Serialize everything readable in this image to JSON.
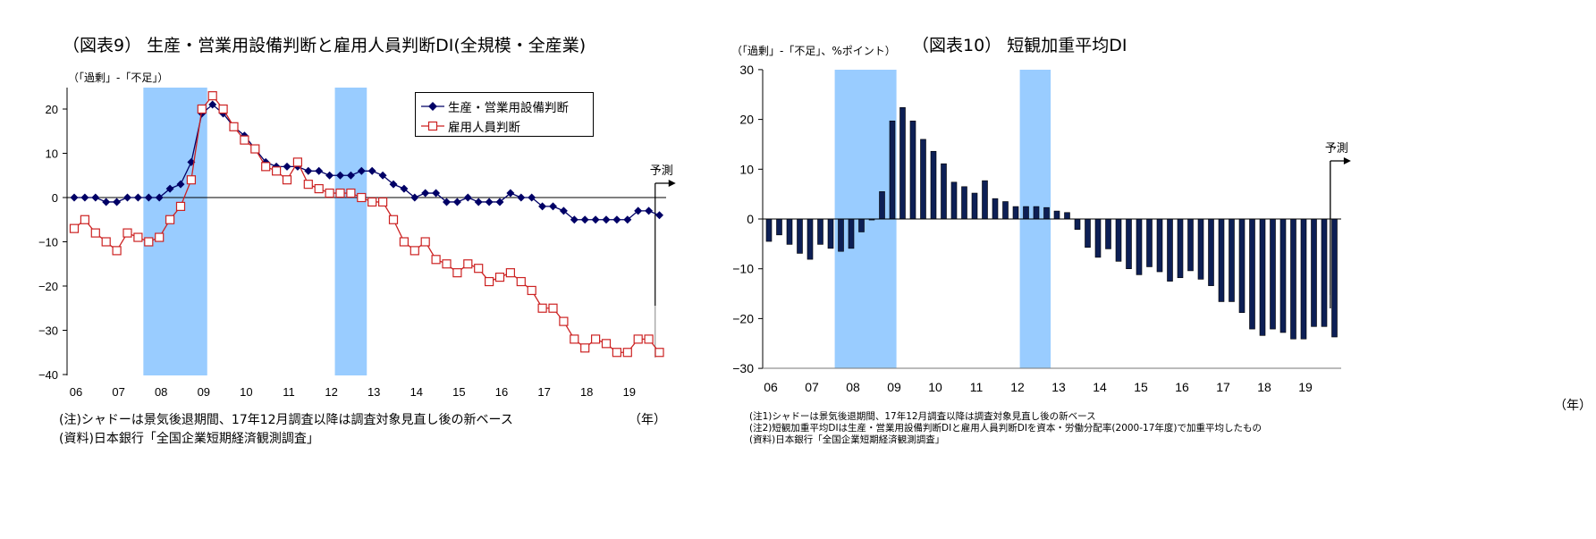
{
  "chart_data": [
    {
      "type": "line",
      "title": "（図表9） 生産・営業用設備判断と雇用人員判断DI(全規模・全産業)",
      "ylabel": "（「過剰」-「不足」）",
      "xlabel": "（年）",
      "ylim": [
        -40,
        25
      ],
      "yticks": [
        20,
        10,
        0,
        -10,
        -20,
        -30,
        -40
      ],
      "xtick_labels": [
        "06",
        "07",
        "08",
        "09",
        "10",
        "11",
        "12",
        "13",
        "14",
        "15",
        "16",
        "17",
        "18",
        "19"
      ],
      "x_start_year": 2006,
      "frequency": "quarterly",
      "grid": false,
      "legend_position": "top-right",
      "series": [
        {
          "name": "生産・営業用設備判断",
          "color": "#000066",
          "marker": "diamond",
          "values": [
            0,
            0,
            0,
            -1,
            -1,
            0,
            0,
            0,
            0,
            2,
            3,
            8,
            19,
            21,
            19,
            16,
            14,
            11,
            8,
            7,
            7,
            7,
            6,
            6,
            5,
            5,
            5,
            6,
            6,
            5,
            3,
            2,
            0,
            1,
            1,
            -1,
            -1,
            0,
            -1,
            -1,
            -1,
            1,
            0,
            0,
            -2,
            -2,
            -3,
            -5,
            -5,
            -5,
            -5,
            -5,
            -5,
            -3,
            -3,
            -4
          ]
        },
        {
          "name": "雇用人員判断",
          "color": "#cc2222",
          "marker": "square-open",
          "values": [
            -7,
            -5,
            -8,
            -10,
            -12,
            -8,
            -9,
            -10,
            -9,
            -5,
            -2,
            4,
            20,
            23,
            20,
            16,
            13,
            11,
            7,
            6,
            4,
            8,
            3,
            2,
            1,
            1,
            1,
            0,
            -1,
            -1,
            -5,
            -10,
            -12,
            -10,
            -14,
            -15,
            -17,
            -15,
            -16,
            -19,
            -18,
            -17,
            -19,
            -21,
            -25,
            -25,
            -28,
            -32,
            -34,
            -32,
            -33,
            -35,
            -35,
            -32,
            -32,
            -35
          ]
        }
      ],
      "shaded_periods": [
        [
          2007.625,
          2009.125
        ],
        [
          2012.125,
          2012.875
        ]
      ],
      "shade_color": "#99ccff",
      "forecast": {
        "label": "予測",
        "from": 2019.65
      },
      "notes": [
        "(注)シャドーは景気後退期間、17年12月調査以降は調査対象見直し後の新ベース",
        "(資料)日本銀行「全国企業短期経済観測調査」"
      ]
    },
    {
      "type": "bar",
      "title": "（図表10） 短観加重平均DI",
      "ylabel": "（「過剰」-「不足」、%ポイント）",
      "xlabel": "（年）",
      "ylim": [
        -30,
        30
      ],
      "yticks": [
        30,
        20,
        10,
        0,
        -10,
        -20,
        -30
      ],
      "xtick_labels": [
        "06",
        "07",
        "08",
        "09",
        "10",
        "11",
        "12",
        "13",
        "14",
        "15",
        "16",
        "17",
        "18",
        "19"
      ],
      "x_start_year": 2006,
      "frequency": "quarterly",
      "grid": false,
      "bar_color": "#0d1f55",
      "values": [
        -4.5,
        -3.2,
        -5.1,
        -6.9,
        -8.1,
        -5.1,
        -5.9,
        -6.5,
        -5.9,
        -2.6,
        -0.2,
        5.5,
        19.7,
        22.4,
        19.7,
        16.0,
        13.6,
        11.1,
        7.4,
        6.5,
        5.2,
        7.7,
        4.1,
        3.5,
        2.5,
        2.5,
        2.5,
        2.3,
        1.6,
        1.3,
        -2.1,
        -5.7,
        -7.7,
        -6.0,
        -8.5,
        -10.0,
        -11.2,
        -9.6,
        -10.6,
        -12.5,
        -11.8,
        -10.4,
        -12.1,
        -13.4,
        -16.6,
        -16.6,
        -18.8,
        -22.1,
        -23.4,
        -22.1,
        -22.8,
        -24.1,
        -24.1,
        -21.6,
        -21.6,
        -23.7
      ],
      "shaded_periods": [
        [
          2007.6,
          2009.1
        ],
        [
          2012.1,
          2012.85
        ]
      ],
      "shade_color": "#99ccff",
      "forecast": {
        "label": "予測",
        "from": 2019.65
      },
      "notes": [
        "(注1)シャドーは景気後退期間、17年12月調査以降は調査対象見直し後の新ベース",
        "(注2)短観加重平均DIは生産・営業用設備判断DIと雇用人員判断DIを資本・労働分配率(2000-17年度)で加重平均したもの",
        "(資料)日本銀行「全国企業短期経済観測調査」"
      ]
    }
  ]
}
